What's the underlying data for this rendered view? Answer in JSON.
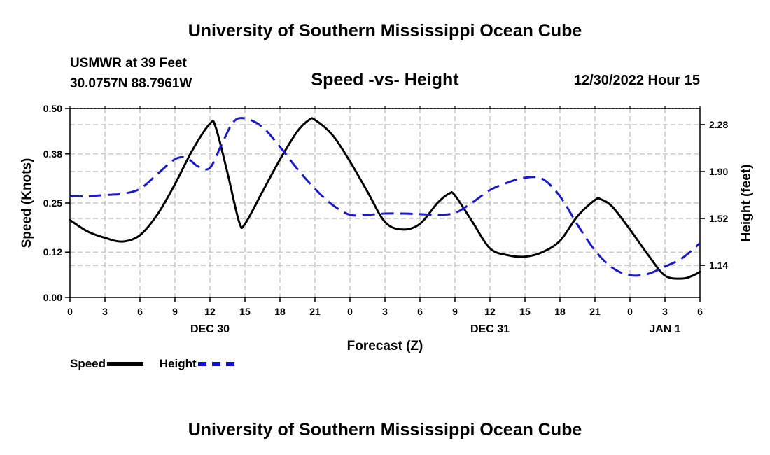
{
  "header": {
    "title_top": "University of Southern Mississippi Ocean Cube",
    "title_bottom": "University of Southern Mississippi Ocean Cube",
    "station_line1": "USMWR at 39 Feet",
    "station_line2": "30.0757N  88.7961W",
    "subtitle": "Speed -vs- Height",
    "date": "12/30/2022 Hour 15"
  },
  "legend": {
    "speed_label": "Speed",
    "height_label": "Height"
  },
  "chart_data": {
    "type": "line",
    "title": "Speed -vs- Height",
    "xlabel": "Forecast (Z)",
    "ylabel": "Speed (Knots)",
    "y2label": "Height (feet)",
    "xlim": [
      0,
      54
    ],
    "ylim": [
      0,
      0.5
    ],
    "y2lim": [
      0.88,
      2.41
    ],
    "grid": true,
    "legend_position": "bottom-left",
    "x_ticks": [
      0,
      3,
      6,
      9,
      12,
      15,
      18,
      21,
      24,
      27,
      30,
      33,
      36,
      39,
      42,
      45,
      48,
      51,
      54
    ],
    "x_tick_labels": [
      "0",
      "3",
      "6",
      "9",
      "12",
      "15",
      "18",
      "21",
      "0",
      "3",
      "6",
      "9",
      "12",
      "15",
      "18",
      "21",
      "0",
      "3",
      "6"
    ],
    "day_labels": [
      {
        "x": 12,
        "label": "DEC 30"
      },
      {
        "x": 36,
        "label": "DEC 31"
      },
      {
        "x": 51,
        "label": "JAN 1"
      }
    ],
    "y_ticks": [
      0.0,
      0.12,
      0.25,
      0.38,
      0.5
    ],
    "y_tick_labels": [
      "0.00",
      "0.12",
      "0.25",
      "0.38",
      "0.50"
    ],
    "y2_ticks": [
      1.14,
      1.52,
      1.9,
      2.28
    ],
    "y2_tick_labels": [
      "1.14",
      "1.52",
      "1.90",
      "2.28"
    ],
    "series": [
      {
        "name": "Speed",
        "axis": "left",
        "color": "#000000",
        "style": "solid",
        "x": [
          0,
          1.5,
          3,
          4.5,
          6,
          7.5,
          9,
          10.5,
          12,
          12.5,
          13.5,
          14.5,
          15,
          16.5,
          18,
          19.5,
          20.5,
          21,
          22.5,
          24,
          25.5,
          27,
          28.5,
          30,
          31.5,
          32.5,
          33,
          34.5,
          36,
          37.5,
          39,
          40.5,
          42,
          43.5,
          45,
          45.5,
          46.5,
          48,
          49.5,
          51,
          52.5,
          53.4,
          54
        ],
        "values": [
          0.205,
          0.175,
          0.158,
          0.148,
          0.165,
          0.22,
          0.3,
          0.39,
          0.46,
          0.45,
          0.33,
          0.2,
          0.195,
          0.28,
          0.365,
          0.44,
          0.47,
          0.47,
          0.43,
          0.36,
          0.28,
          0.2,
          0.18,
          0.195,
          0.25,
          0.275,
          0.27,
          0.2,
          0.13,
          0.112,
          0.108,
          0.12,
          0.15,
          0.215,
          0.258,
          0.26,
          0.24,
          0.18,
          0.115,
          0.058,
          0.05,
          0.058,
          0.068
        ]
      },
      {
        "name": "Height",
        "axis": "right",
        "color": "#1a1acc",
        "style": "dashed",
        "x": [
          0,
          1.5,
          3,
          4.5,
          6,
          7.5,
          9,
          10,
          11,
          12,
          13,
          14,
          15,
          16.5,
          18,
          19.5,
          21,
          22.5,
          24,
          25.5,
          27,
          28.5,
          30,
          31.5,
          33,
          34.5,
          36,
          37.5,
          39,
          40.5,
          42,
          43.5,
          45,
          46.5,
          48,
          49.5,
          51,
          52.5,
          54
        ],
        "values": [
          1.7,
          1.7,
          1.71,
          1.72,
          1.76,
          1.88,
          2.0,
          2.01,
          1.94,
          1.93,
          2.12,
          2.3,
          2.33,
          2.26,
          2.1,
          1.92,
          1.76,
          1.63,
          1.55,
          1.55,
          1.56,
          1.56,
          1.555,
          1.55,
          1.565,
          1.65,
          1.75,
          1.81,
          1.85,
          1.84,
          1.7,
          1.47,
          1.26,
          1.12,
          1.06,
          1.07,
          1.13,
          1.2,
          1.32
        ]
      }
    ]
  }
}
